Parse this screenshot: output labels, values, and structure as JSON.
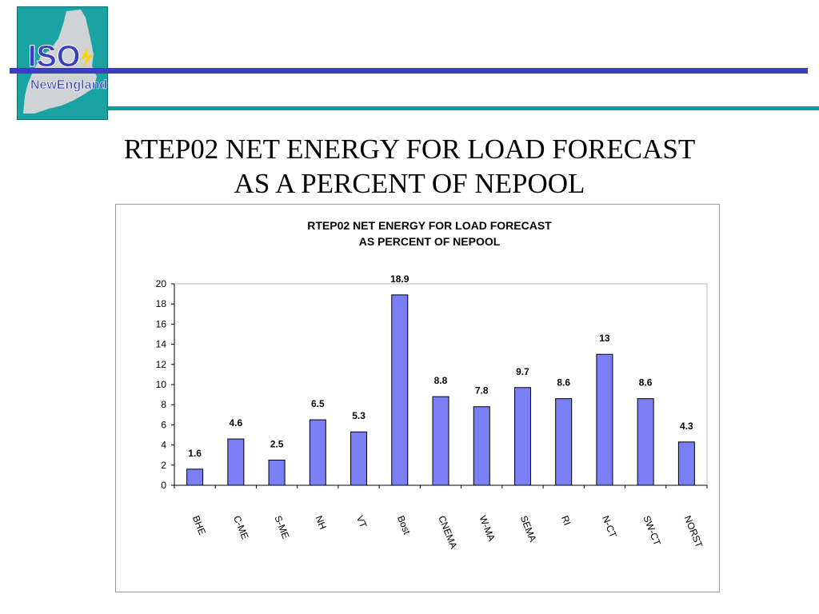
{
  "slide": {
    "title_line1": "RTEP02 NET ENERGY FOR LOAD FORECAST",
    "title_line2": "AS A PERCENT OF NEPOOL"
  },
  "logo": {
    "text_top": "ISO",
    "text_bottom": "NewEngland",
    "colors": {
      "background": "#1aa3a3",
      "map": "#cfd3d6",
      "text": "#3a3fbf",
      "bolt": "#ffd400"
    }
  },
  "rules": {
    "blue": "#3a3fbf",
    "teal": "#0f9a9a"
  },
  "chart_data": {
    "type": "bar",
    "title_line1": "RTEP02 NET ENERGY FOR LOAD FORECAST",
    "title_line2": "AS PERCENT OF NEPOOL",
    "xlabel": "",
    "ylabel": "",
    "categories": [
      "BHE",
      "C-ME",
      "S-ME",
      "NH",
      "VT",
      "Bost",
      "CNEMA",
      "W-MA",
      "SEMA",
      "RI",
      "N-CT",
      "SW-CT",
      "NORST"
    ],
    "values": [
      1.6,
      4.6,
      2.5,
      6.5,
      5.3,
      18.9,
      8.8,
      7.8,
      9.7,
      8.6,
      13,
      8.6,
      4.3
    ],
    "data_labels": [
      "1.6",
      "4.6",
      "2.5",
      "6.5",
      "5.3",
      "18.9",
      "8.8",
      "7.8",
      "9.7",
      "8.6",
      "13",
      "8.6",
      "4.3"
    ],
    "ylim": [
      0,
      20
    ],
    "yticks": [
      0,
      2,
      4,
      6,
      8,
      10,
      12,
      14,
      16,
      18,
      20
    ],
    "grid": false,
    "legend": "none",
    "bar_color": "#7b7ff5",
    "bar_edge_color": "#000000"
  }
}
